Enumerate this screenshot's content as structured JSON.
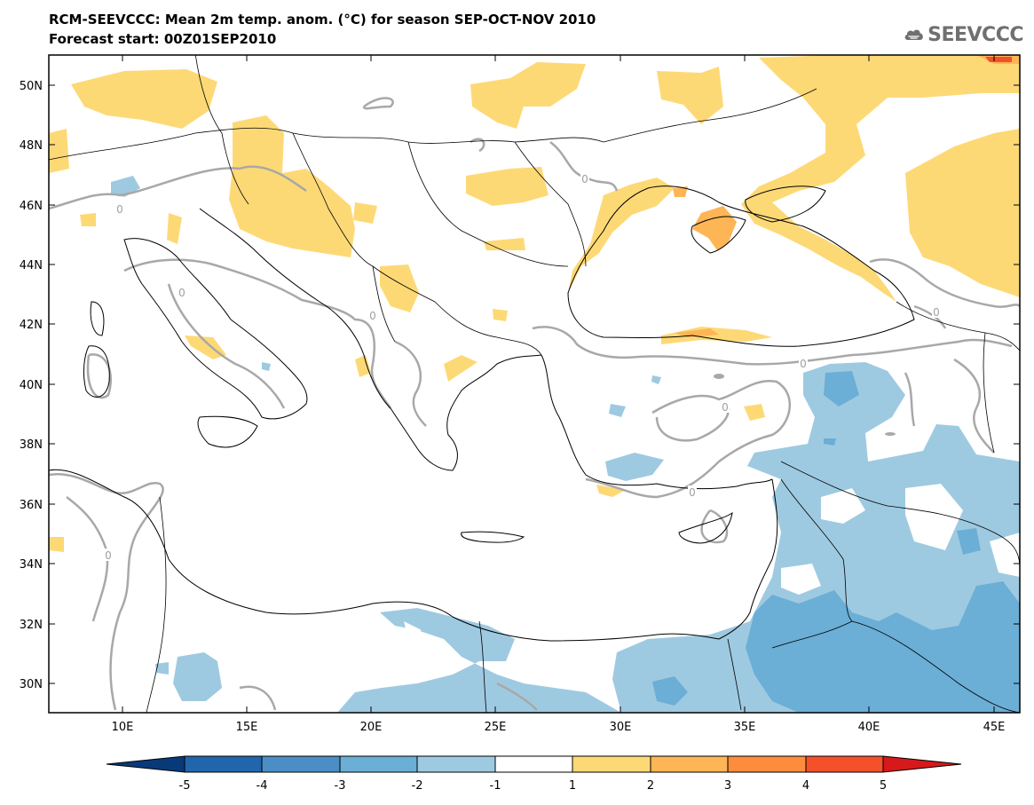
{
  "header": {
    "title": "RCM-SEEVCCC: Mean 2m temp. anom. (°C) for season SEP-OCT-NOV 2010",
    "subtitle": "Forecast start: 00Z01SEP2010"
  },
  "logo": {
    "text": "SEEVCCC",
    "icon": "cloud-icon"
  },
  "map": {
    "lat_labels": [
      "50N",
      "48N",
      "46N",
      "44N",
      "42N",
      "40N",
      "38N",
      "36N",
      "34N",
      "32N",
      "30N"
    ],
    "lon_labels": [
      "10E",
      "15E",
      "20E",
      "25E",
      "30E",
      "35E",
      "40E",
      "45E"
    ],
    "contour_labels": [
      "0",
      "0",
      "0",
      "0",
      "0",
      "0",
      "0",
      "0",
      "0"
    ]
  },
  "colorbar": {
    "colors": [
      "#083a7a",
      "#2166ac",
      "#4b8ec6",
      "#6baed6",
      "#9ecae1",
      "#ffffff",
      "#fdd976",
      "#fdb556",
      "#fd8d3c",
      "#f4502a",
      "#d7191c"
    ],
    "tick_labels": [
      "-5",
      "-4",
      "-3",
      "-2",
      "-1",
      "1",
      "2",
      "3",
      "4",
      "5"
    ]
  }
}
